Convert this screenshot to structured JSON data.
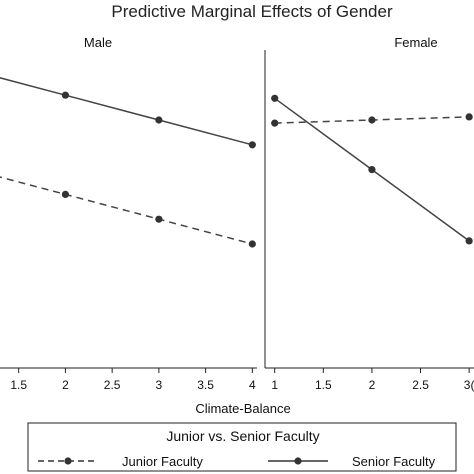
{
  "chart_data": {
    "type": "line",
    "title": "Predictive Marginal Effects of Gender",
    "xlabel": "Climate-Balance",
    "legend": {
      "title": "Junior vs. Senior Faculty",
      "position": "bottom"
    },
    "grid": false,
    "panels": [
      {
        "label": "Male",
        "xlim": [
          1.3,
          4.05
        ],
        "ylim": [
          0,
          1
        ],
        "ticks": [
          "1.5",
          "2",
          "2.5",
          "3",
          "3.5",
          "4"
        ],
        "tick_values": [
          1.5,
          2,
          2.5,
          3,
          3.5,
          4
        ],
        "series": [
          {
            "name": "Junior Faculty",
            "style": "dashed",
            "x": [
              1,
              2,
              3,
              4
            ],
            "y": [
              0.64,
              0.56,
              0.48,
              0.4
            ]
          },
          {
            "name": "Senior Faculty",
            "style": "solid",
            "x": [
              1,
              2,
              3,
              4
            ],
            "y": [
              0.96,
              0.88,
              0.8,
              0.72
            ]
          }
        ]
      },
      {
        "label": "Female",
        "xlim": [
          0.9,
          3.05
        ],
        "ylim": [
          0,
          1
        ],
        "ticks": [
          "1",
          "1.5",
          "2",
          "2.5",
          "3"
        ],
        "tick_values": [
          1,
          1.5,
          2,
          2.5,
          3
        ],
        "tick_display": [
          "1",
          "1.5",
          "2",
          "2.5",
          "3("
        ],
        "series": [
          {
            "name": "Junior Faculty",
            "style": "dashed",
            "x": [
              1,
              2,
              3
            ],
            "y": [
              0.79,
              0.8,
              0.81
            ]
          },
          {
            "name": "Senior Faculty",
            "style": "solid",
            "x": [
              1,
              2,
              3
            ],
            "y": [
              0.87,
              0.64,
              0.41
            ]
          }
        ]
      }
    ]
  }
}
